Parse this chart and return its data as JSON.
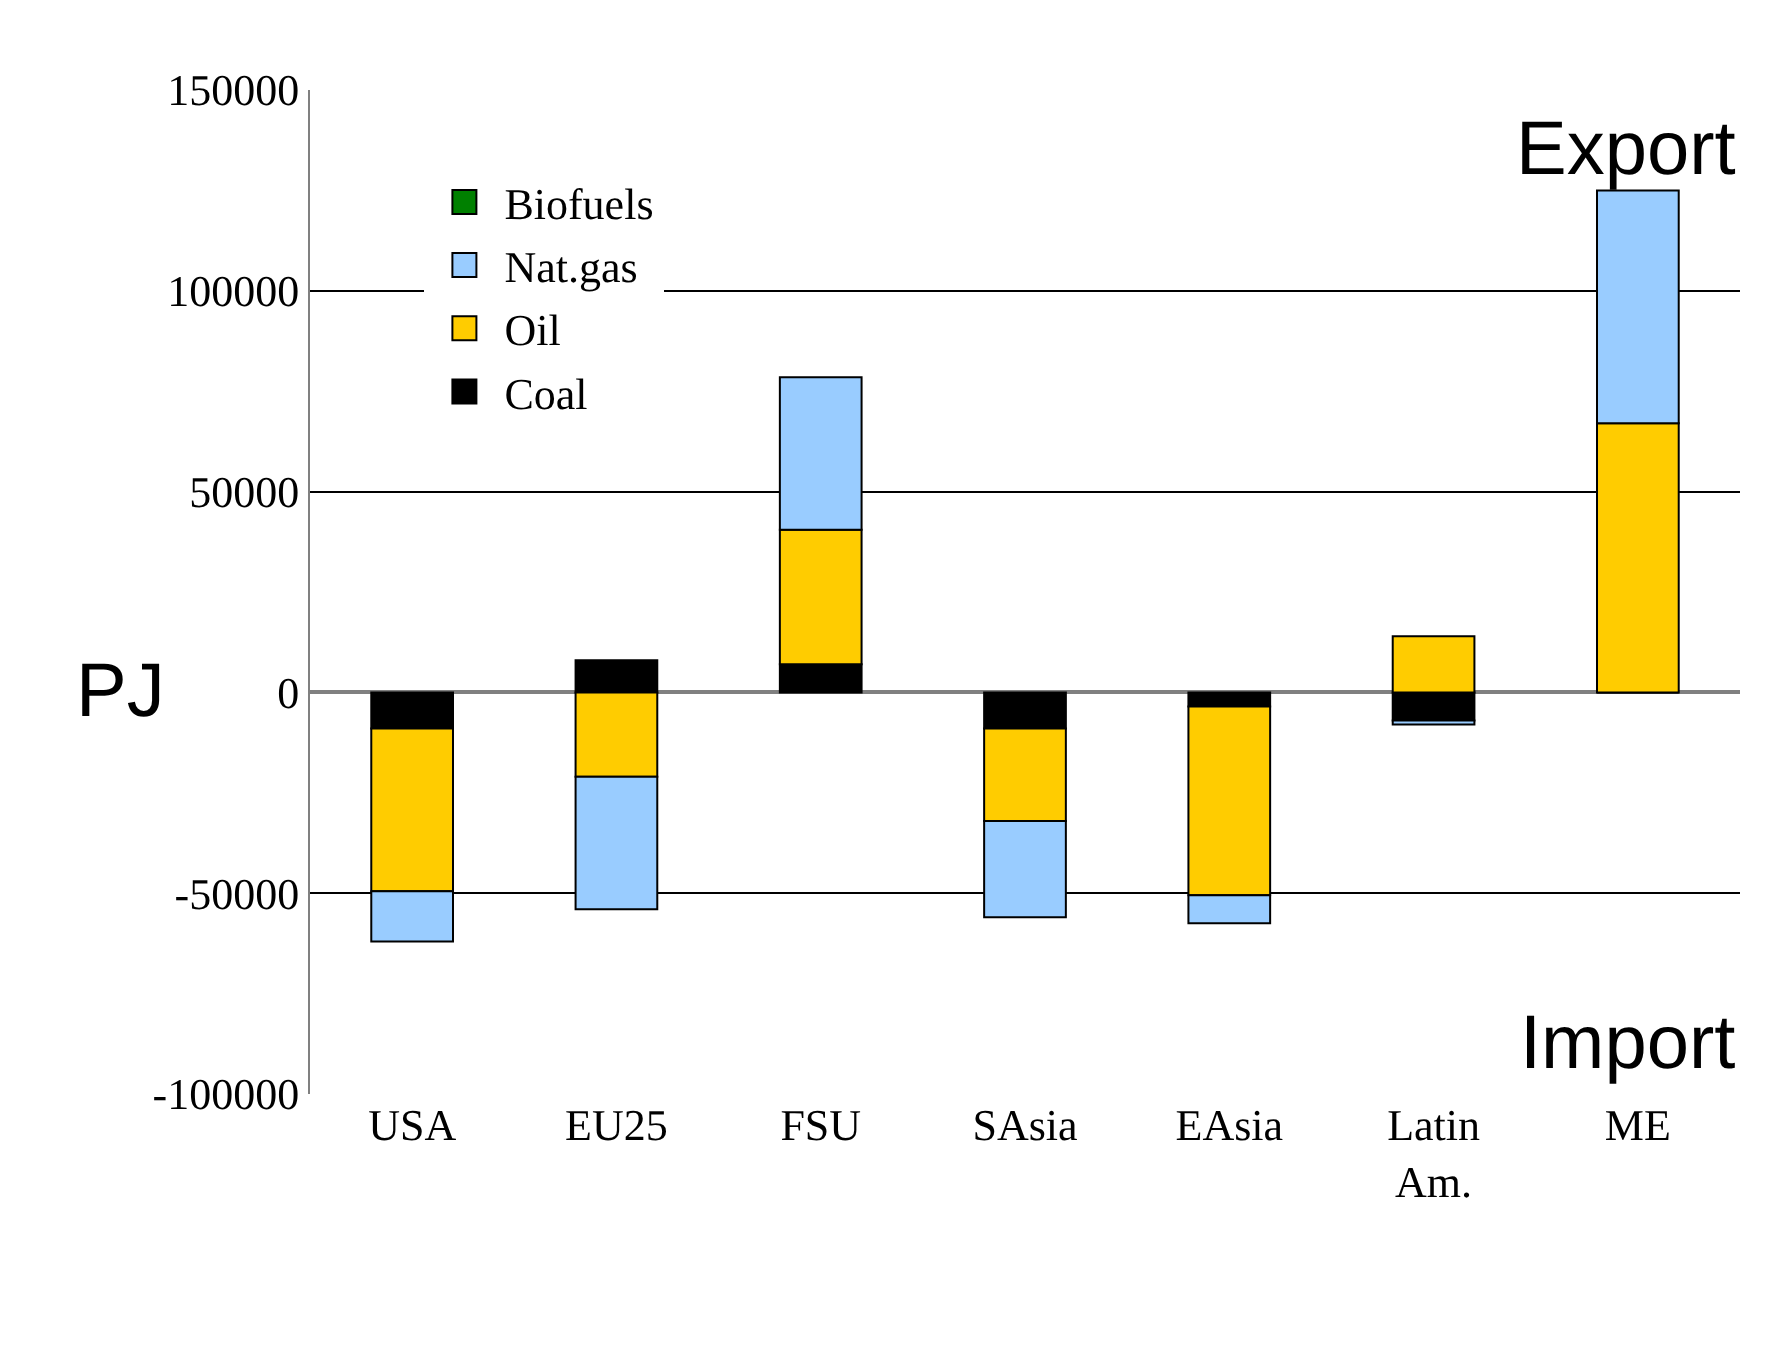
{
  "chart_data": {
    "type": "bar",
    "stacked": true,
    "ylabel": "PJ",
    "categories": [
      "USA",
      "EU25",
      "FSU",
      "SAsia",
      "EAsia",
      "Latin Am.",
      "ME"
    ],
    "series": [
      {
        "name": "Coal",
        "color": "#000000",
        "values": [
          -9000,
          8000,
          7000,
          -9000,
          -3500,
          -7000,
          0
        ]
      },
      {
        "name": "Oil",
        "color": "#ffcc00",
        "values": [
          -40500,
          -21000,
          33500,
          -23000,
          -47000,
          14000,
          67000
        ]
      },
      {
        "name": "Nat.gas",
        "color": "#99ccff",
        "values": [
          -12500,
          -33000,
          38000,
          -24000,
          -7000,
          -1000,
          58000
        ]
      },
      {
        "name": "Biofuels",
        "color": "#008000",
        "values": [
          null,
          null,
          null,
          null,
          null,
          null,
          null
        ]
      }
    ],
    "ylim": [
      -100000,
      150000
    ],
    "yticks": [
      -100000,
      -50000,
      0,
      50000,
      100000,
      150000
    ],
    "grid": "y",
    "legend": "top left",
    "annotations": [
      "Export",
      "Import"
    ]
  }
}
